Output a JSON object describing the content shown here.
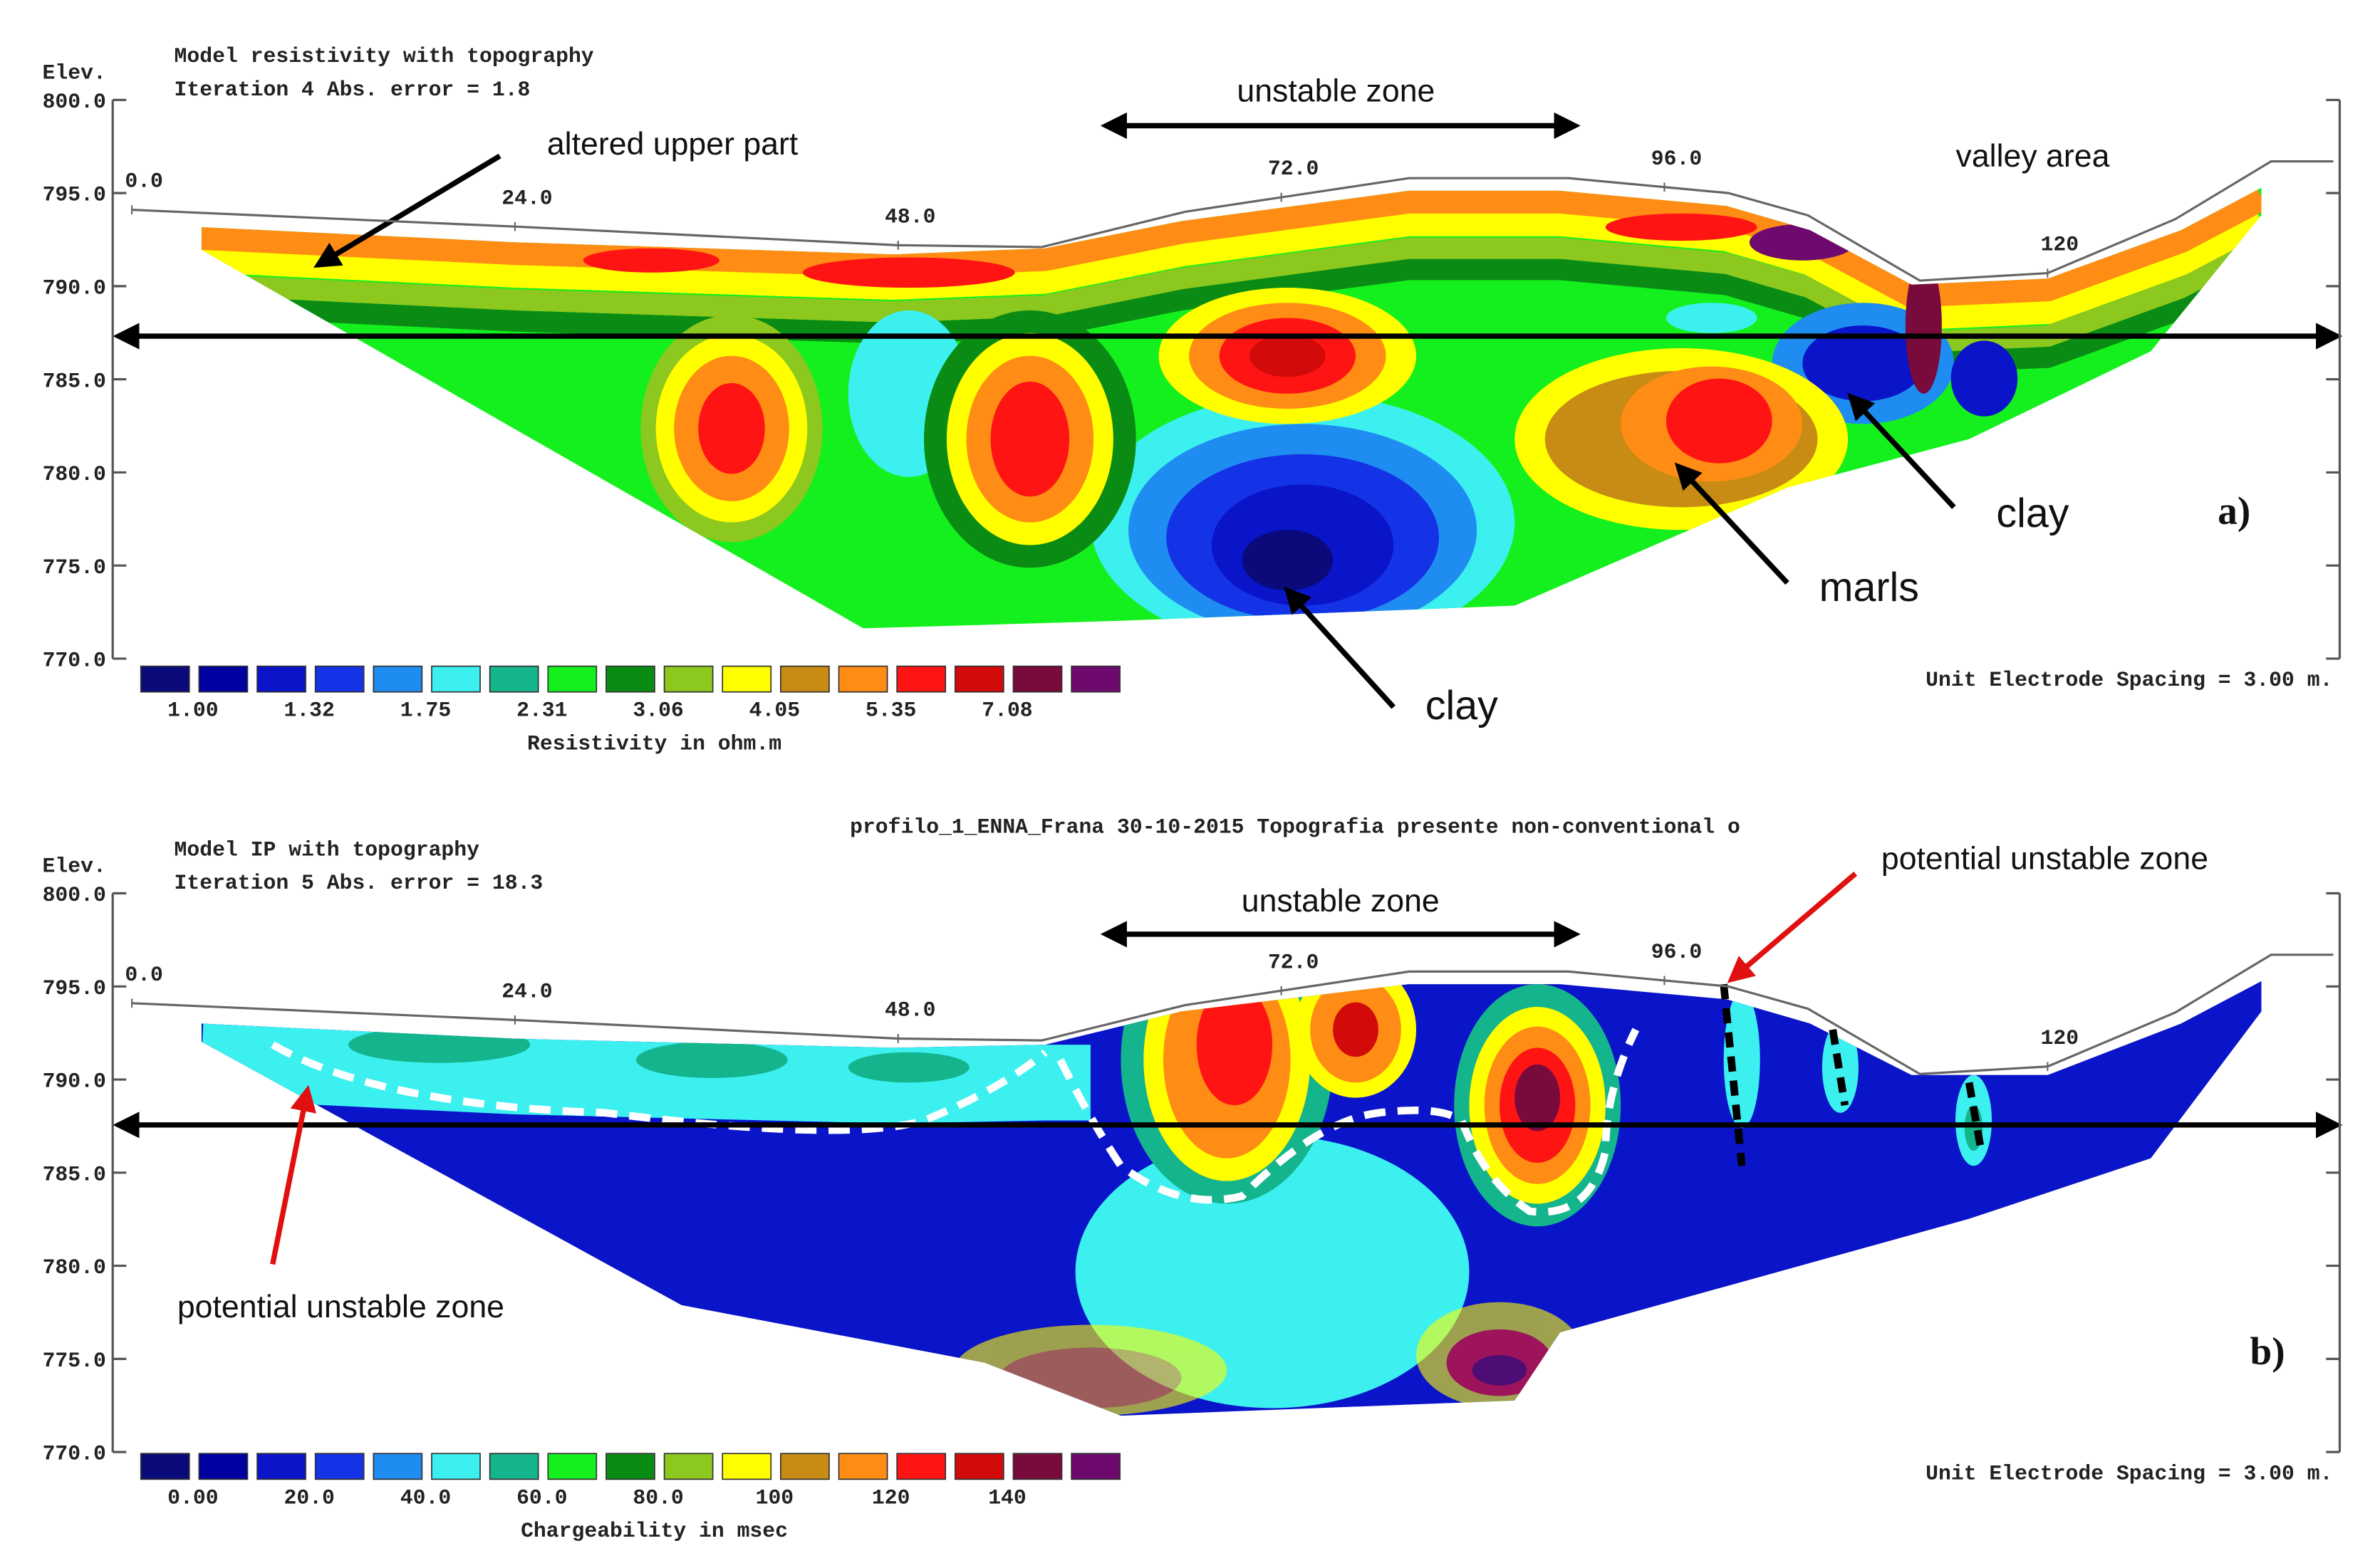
{
  "chart_data": [
    {
      "type": "contour",
      "title": "Model resistivity with topography",
      "subtitle": "Iteration 4 Abs. error = 1.8",
      "y_label": "Elev.",
      "xlim": [
        -1.2,
        138.3
      ],
      "ylim": [
        770,
        800
      ],
      "yticks": [
        {
          "value": 800,
          "label": "800.0"
        },
        {
          "value": 795,
          "label": "795.0"
        },
        {
          "value": 790,
          "label": "790.0"
        },
        {
          "value": 785,
          "label": "785.0"
        },
        {
          "value": 780,
          "label": "780.0"
        },
        {
          "value": 775,
          "label": "775.0"
        },
        {
          "value": 770,
          "label": "770.0"
        }
      ],
      "xticks": [
        {
          "value": 0,
          "label": "0.0"
        },
        {
          "value": 24,
          "label": "24.0"
        },
        {
          "value": 48,
          "label": "48.0"
        },
        {
          "value": 72,
          "label": "72.0"
        },
        {
          "value": 96,
          "label": "96.0"
        },
        120
      ],
      "topography": {
        "x": [
          0,
          24,
          48,
          57,
          66,
          80,
          90,
          100,
          105,
          112,
          120,
          128,
          134,
          137.9
        ],
        "y": [
          794.1,
          793.2,
          792.2,
          792.1,
          794.0,
          795.8,
          795.8,
          795.0,
          793.8,
          790.3,
          790.7,
          793.6,
          796.7,
          796.7
        ]
      },
      "colorbar": {
        "label": "Resistivity in ohm.m",
        "colors": [
          "#0a0a7a",
          "#0000a0",
          "#0a14c8",
          "#1432e6",
          "#1e8cf0",
          "#3cf0f0",
          "#14b48c",
          "#14f01e",
          "#0a8c14",
          "#8cc81e",
          "#ffff00",
          "#c88c14",
          "#ff8c14",
          "#ff1414",
          "#d20a0a",
          "#780a3c",
          "#6e0a6e"
        ],
        "labels": [
          "1.00",
          "1.32",
          "1.75",
          "2.31",
          "3.06",
          "4.05",
          "5.35",
          "7.08"
        ]
      },
      "note": "Unit Electrode Spacing = 3.00 m.",
      "annotations": [
        "unstable zone",
        "altered upper part",
        "valley area",
        "clay",
        "marls",
        "clay"
      ],
      "panel_label": "a)"
    },
    {
      "type": "contour",
      "header": "profilo_1_ENNA_Frana 30-10-2015 Topografia presente non-conventional o",
      "title": "Model IP with topography",
      "subtitle": "Iteration 5 Abs. error = 18.3",
      "y_label": "Elev.",
      "xlim": [
        -1.2,
        138.3
      ],
      "ylim": [
        770,
        800
      ],
      "yticks": [
        {
          "value": 800,
          "label": "800.0"
        },
        {
          "value": 795,
          "label": "795.0"
        },
        {
          "value": 790,
          "label": "790.0"
        },
        {
          "value": 785,
          "label": "785.0"
        },
        {
          "value": 780,
          "label": "780.0"
        },
        {
          "value": 775,
          "label": "775.0"
        },
        {
          "value": 770,
          "label": "770.0"
        }
      ],
      "xticks": [
        {
          "value": 0,
          "label": "0.0"
        },
        {
          "value": 24,
          "label": "24.0"
        },
        {
          "value": 48,
          "label": "48.0"
        },
        {
          "value": 72,
          "label": "72.0"
        },
        {
          "value": 96,
          "label": "96.0"
        },
        120
      ],
      "topography": {
        "x": [
          0,
          24,
          48,
          57,
          66,
          80,
          90,
          100,
          105,
          112,
          120,
          128,
          134,
          137.9
        ],
        "y": [
          794.1,
          793.2,
          792.2,
          792.1,
          794.0,
          795.8,
          795.8,
          795.0,
          793.8,
          790.3,
          790.7,
          793.6,
          796.7,
          796.7
        ]
      },
      "colorbar": {
        "label": "Chargeability in msec",
        "colors": [
          "#0a0a7a",
          "#0000a0",
          "#0a14c8",
          "#1432e6",
          "#1e8cf0",
          "#3cf0f0",
          "#14b48c",
          "#14f01e",
          "#0a8c14",
          "#8cc81e",
          "#ffff00",
          "#c88c14",
          "#ff8c14",
          "#ff1414",
          "#d20a0a",
          "#780a3c",
          "#6e0a6e"
        ],
        "labels": [
          "0.00",
          "20.0",
          "40.0",
          "60.0",
          "80.0",
          "100",
          "120",
          "140"
        ]
      },
      "note": "Unit Electrode Spacing = 3.00 m.",
      "annotations": [
        "unstable zone",
        "potential unstable zone",
        "potential unstable zone"
      ],
      "panel_label": "b)"
    }
  ]
}
